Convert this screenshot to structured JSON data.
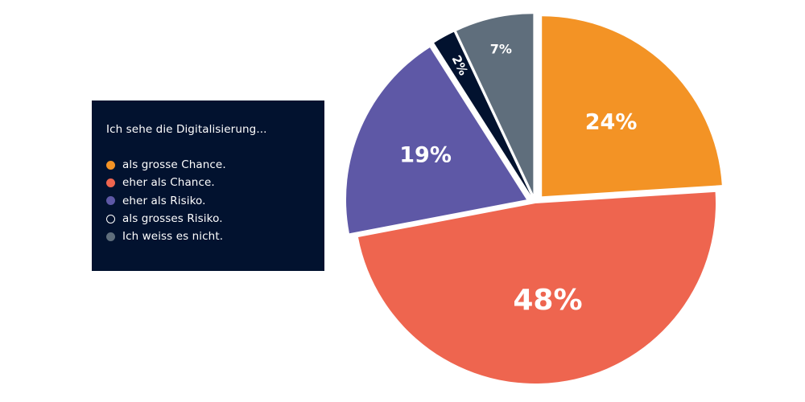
{
  "chart_data": {
    "type": "pie",
    "title": "Ich sehe die Digitalisierung...",
    "categories": [
      "als grosse Chance.",
      "eher als Chance.",
      "eher als Risiko.",
      "als grosses Risiko.",
      "Ich weiss es nicht."
    ],
    "values": [
      24,
      48,
      19,
      2,
      7
    ],
    "value_labels": [
      "24%",
      "48%",
      "19%",
      "2%",
      "7%"
    ],
    "colors": [
      "#f39325",
      "#ee654f",
      "#5e58a6",
      "#02122f",
      "#5f6e7c"
    ],
    "exploded": [
      true,
      false,
      true,
      true,
      true
    ],
    "legend_position": "left"
  },
  "legend": {
    "title": "Ich sehe die Digitalisierung...",
    "items": [
      {
        "label": "als grosse Chance.",
        "color": "#f39325"
      },
      {
        "label": "eher als Chance.",
        "color": "#ee654f"
      },
      {
        "label": "eher als Risiko.",
        "color": "#5e58a6"
      },
      {
        "label": "als grosses Risiko.",
        "color": "#02122f"
      },
      {
        "label": "Ich weiss es nicht.",
        "color": "#5f6e7c"
      }
    ]
  }
}
